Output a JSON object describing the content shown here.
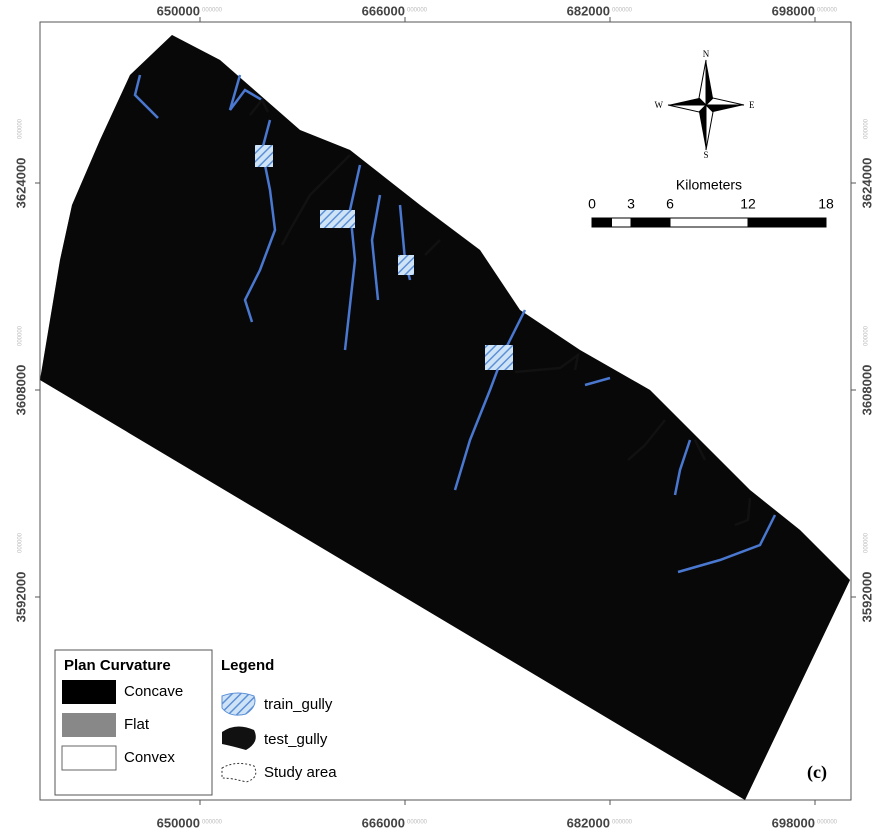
{
  "map": {
    "x_ticks": [
      650000,
      666000,
      682000,
      698000
    ],
    "y_ticks": [
      3624000,
      3608000,
      3592000
    ],
    "tick_suffix": "000000",
    "panel_label": "(c)"
  },
  "north_arrow": {
    "n": "N",
    "s": "S",
    "e": "E",
    "w": "W"
  },
  "scale_bar": {
    "title": "Kilometers",
    "ticks": [
      0,
      3,
      6,
      12,
      18
    ]
  },
  "plan_curvature": {
    "title": "Plan Curvature",
    "items": [
      "Concave",
      "Flat",
      "Convex"
    ]
  },
  "legend": {
    "title": "Legend",
    "items": [
      "train_gully",
      "test_gully",
      "Study area"
    ]
  }
}
